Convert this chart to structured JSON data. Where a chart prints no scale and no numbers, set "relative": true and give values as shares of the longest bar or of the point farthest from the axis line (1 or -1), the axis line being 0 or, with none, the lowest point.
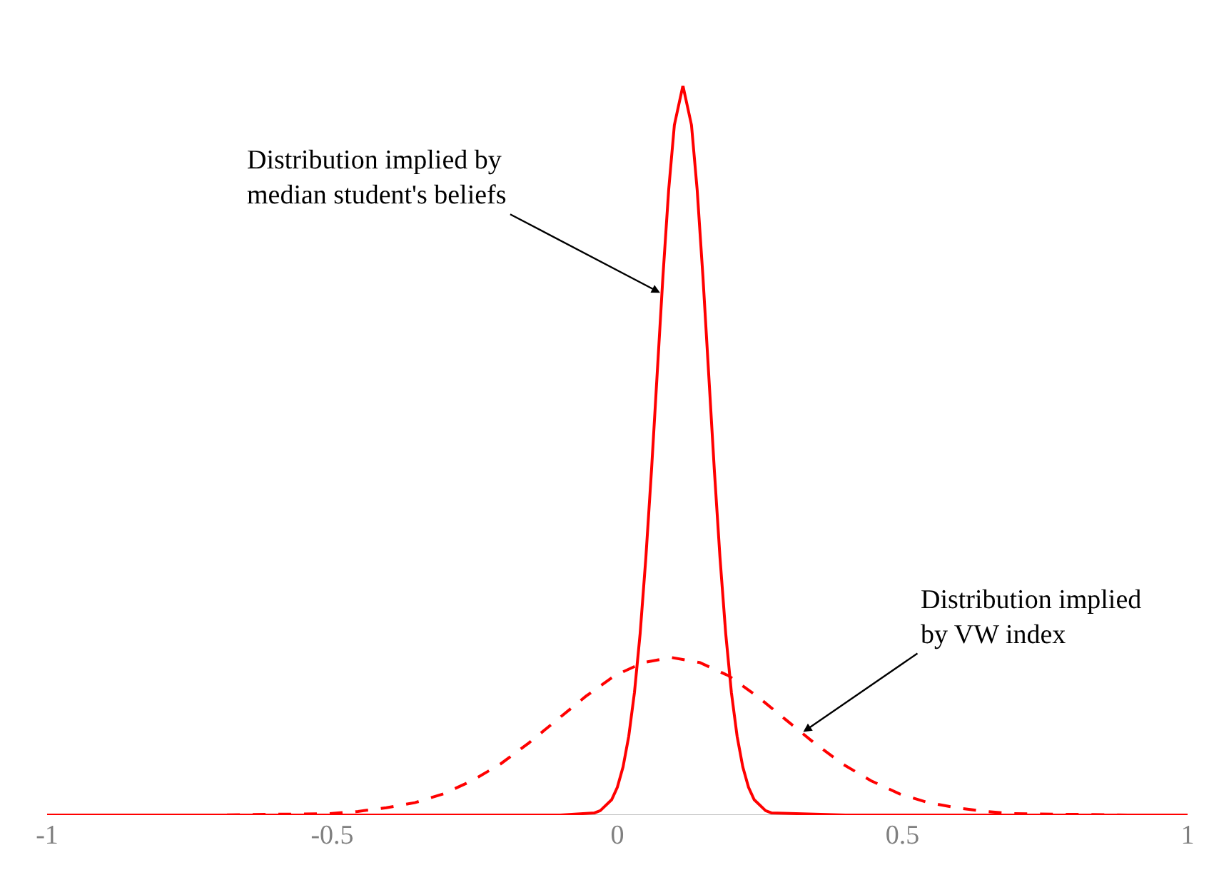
{
  "chart_data": {
    "type": "line",
    "relative": true,
    "grid": false,
    "marker": "none",
    "xlim": [
      -1,
      1
    ],
    "xticks": [
      -1,
      -0.5,
      0,
      0.5,
      1
    ],
    "series": [
      {
        "color": "#ff0000",
        "line_style": "solid",
        "x": [
          -1,
          -0.5,
          -0.1,
          -0.04,
          -0.03,
          -0.01,
          0,
          0.01,
          0.02,
          0.03,
          0.04,
          0.05,
          0.06,
          0.07,
          0.08,
          0.09,
          0.1,
          0.115,
          0.13,
          0.14,
          0.15,
          0.16,
          0.17,
          0.18,
          0.19,
          0.2,
          0.21,
          0.22,
          0.23,
          0.24,
          0.26,
          0.27,
          0.4,
          1
        ],
        "values": [
          0,
          0,
          0,
          0.003,
          0.006,
          0.021,
          0.038,
          0.066,
          0.108,
          0.168,
          0.249,
          0.353,
          0.474,
          0.607,
          0.739,
          0.857,
          0.946,
          1,
          0.946,
          0.857,
          0.739,
          0.607,
          0.474,
          0.353,
          0.249,
          0.168,
          0.108,
          0.066,
          0.038,
          0.021,
          0.006,
          0.003,
          0,
          0
        ]
      },
      {
        "color": "#ff0000",
        "line_style": "dashed",
        "x": [
          -1,
          -0.705,
          -0.505,
          -0.455,
          -0.405,
          -0.355,
          -0.305,
          -0.255,
          -0.205,
          -0.155,
          -0.105,
          -0.055,
          -0.005,
          0.045,
          0.095,
          0.145,
          0.195,
          0.245,
          0.295,
          0.345,
          0.395,
          0.445,
          0.495,
          0.545,
          0.595,
          0.645,
          0.695,
          0.895,
          1
        ],
        "values": [
          0,
          0,
          0.002,
          0.005,
          0.01,
          0.017,
          0.029,
          0.047,
          0.07,
          0.099,
          0.131,
          0.163,
          0.191,
          0.209,
          0.216,
          0.209,
          0.191,
          0.163,
          0.131,
          0.099,
          0.07,
          0.047,
          0.029,
          0.017,
          0.01,
          0.005,
          0.002,
          0,
          0
        ]
      }
    ],
    "annotations": [
      {
        "text": "Distribution implied by\nmedian student's beliefs",
        "x": 0.075,
        "y": 0.716
      },
      {
        "text": "Distribution implied\nby VW index",
        "x": 0.326,
        "y": 0.114
      }
    ]
  }
}
